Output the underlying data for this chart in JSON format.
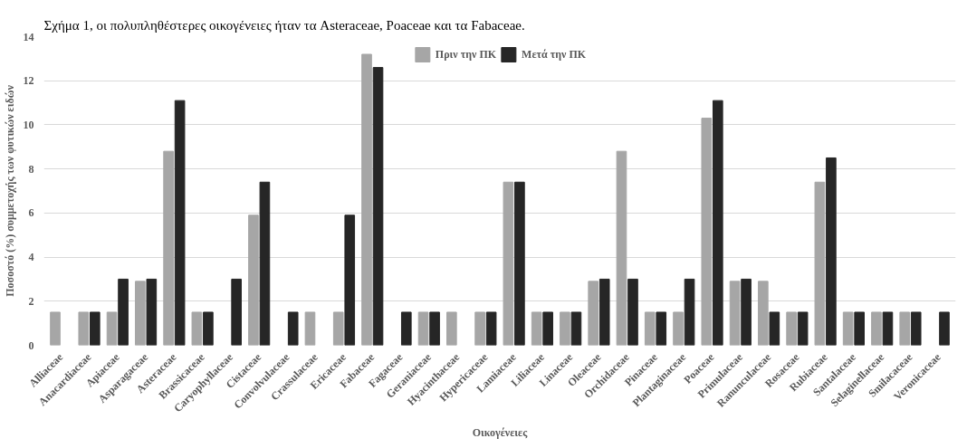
{
  "chart_data": {
    "type": "bar",
    "annotations": [
      "Σχήμα 1, οι πολυπληθέστερες οικογένειες ήταν τα Asteraceae, Poaceae και τα Fabaceae."
    ],
    "xlabel": "Οικογένειες",
    "ylabel": "Ποσοστό (%) συμμετοχής των φυτικών ειδών",
    "categories": [
      "Alliaceae",
      "Anacardiaceae",
      "Apiaceae",
      "Asparagaceae",
      "Asteraceae",
      "Brassicaceae",
      "Caryophyllaceae",
      "Cistaceae",
      "Convolvulaceae",
      "Crassulaceae",
      "Ericaceae",
      "Fabaceae",
      "Fagaceae",
      "Geraniaceae",
      "Hyacinthaceae",
      "Hypericaceae",
      "Lamiaceae",
      "Liliaceae",
      "Linaceae",
      "Oleaceae",
      "Orchidaceae",
      "Pinaceae",
      "Plantaginaceae",
      "Poaceae",
      "Primulaceae",
      "Ranunculaceae",
      "Rosaceae",
      "Rubiaceae",
      "Santalaceae",
      "Selaginellaceae",
      "Smilacaceae",
      "Veronicaceae"
    ],
    "series": [
      {
        "name": "Πριν την ΠΚ",
        "color": "#a6a6a6",
        "values": [
          1.5,
          1.5,
          1.5,
          2.9,
          8.8,
          1.5,
          null,
          5.9,
          null,
          1.5,
          1.5,
          13.2,
          null,
          1.5,
          1.5,
          1.5,
          7.4,
          1.5,
          1.5,
          2.9,
          8.8,
          1.5,
          1.5,
          10.3,
          2.9,
          2.9,
          1.5,
          7.4,
          1.5,
          1.5,
          1.5,
          null
        ]
      },
      {
        "name": "Μετά την ΠΚ",
        "color": "#262626",
        "values": [
          null,
          1.5,
          3,
          3,
          11.1,
          1.5,
          3,
          7.4,
          1.5,
          null,
          5.9,
          12.6,
          1.5,
          1.5,
          null,
          1.5,
          7.4,
          1.5,
          1.5,
          3,
          3,
          1.5,
          3,
          11.1,
          3,
          1.5,
          1.5,
          8.5,
          1.5,
          1.5,
          1.5,
          1.5
        ]
      }
    ],
    "ylim": [
      0,
      14
    ],
    "yticks": [
      0,
      2,
      4,
      6,
      8,
      10,
      12,
      14
    ],
    "grid": "y",
    "legend": "top"
  }
}
